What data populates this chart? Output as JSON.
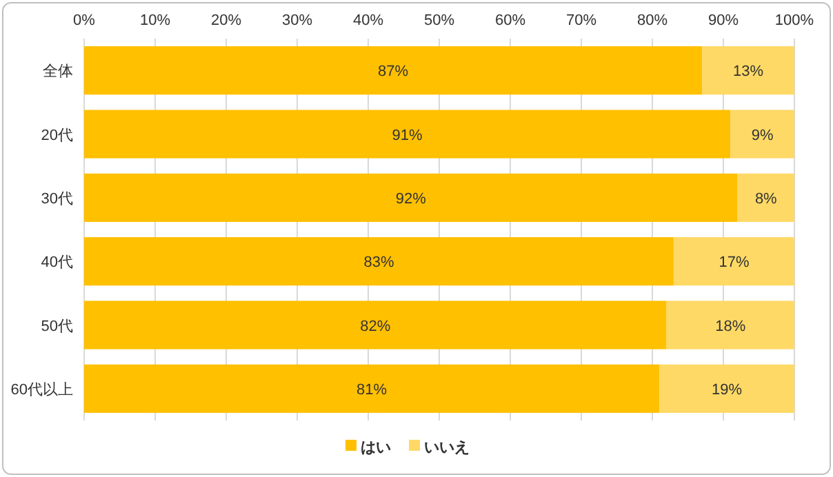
{
  "chart_data": {
    "type": "bar",
    "orientation": "horizontal",
    "stacked": true,
    "categories": [
      "全体",
      "20代",
      "30代",
      "40代",
      "50代",
      "60代以上"
    ],
    "series": [
      {
        "name": "はい",
        "color": "#ffc000",
        "values": [
          87,
          91,
          92,
          83,
          82,
          81
        ],
        "value_labels": [
          "87%",
          "91%",
          "92%",
          "83%",
          "82%",
          "81%"
        ]
      },
      {
        "name": "いいえ",
        "color": "#ffd966",
        "values": [
          13,
          9,
          8,
          17,
          18,
          19
        ],
        "value_labels": [
          "13%",
          "9%",
          "8%",
          "17%",
          "18%",
          "19%"
        ]
      }
    ],
    "xlim": [
      0,
      100
    ],
    "xticks": [
      {
        "value": 0,
        "label": "0%"
      },
      {
        "value": 10,
        "label": "10%"
      },
      {
        "value": 20,
        "label": "20%"
      },
      {
        "value": 30,
        "label": "30%"
      },
      {
        "value": 40,
        "label": "40%"
      },
      {
        "value": 50,
        "label": "50%"
      },
      {
        "value": 60,
        "label": "60%"
      },
      {
        "value": 70,
        "label": "70%"
      },
      {
        "value": 80,
        "label": "80%"
      },
      {
        "value": 90,
        "label": "90%"
      },
      {
        "value": 100,
        "label": "100%"
      }
    ],
    "grid": "x",
    "legend": "bottom"
  }
}
